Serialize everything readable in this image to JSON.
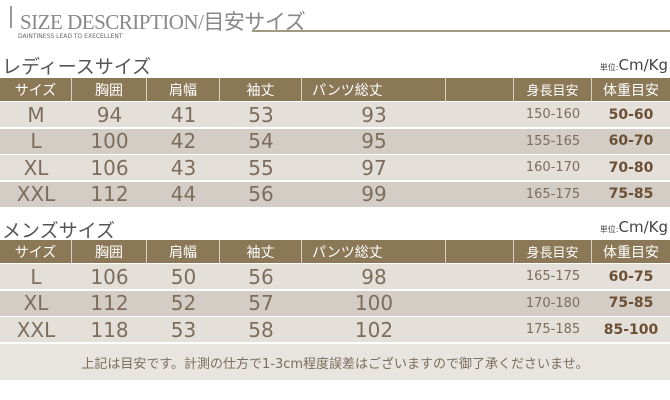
{
  "header": {
    "title": "SIZE DESCRIPTION/目安サイズ",
    "subtitle": "DAINTINESS LEAD TO EXECELLENT"
  },
  "unit_label": "単位:",
  "unit": "Cm/Kg",
  "columns": [
    "サイズ",
    "胸囲",
    "肩幅",
    "袖丈",
    "パンツ総丈",
    "",
    "身長目安",
    "体重目安"
  ],
  "ladies": {
    "title": "レディースサイズ",
    "rows": [
      [
        "M",
        "94",
        "41",
        "53",
        "93",
        "",
        "150-160",
        "50-60"
      ],
      [
        "L",
        "100",
        "42",
        "54",
        "95",
        "",
        "155-165",
        "60-70"
      ],
      [
        "XL",
        "106",
        "43",
        "55",
        "97",
        "",
        "160-170",
        "70-80"
      ],
      [
        "XXL",
        "112",
        "44",
        "56",
        "99",
        "",
        "165-175",
        "75-85"
      ]
    ]
  },
  "mens": {
    "title": "メンズサイズ",
    "rows": [
      [
        "L",
        "106",
        "50",
        "56",
        "98",
        "",
        "165-175",
        "60-75"
      ],
      [
        "XL",
        "112",
        "52",
        "57",
        "100",
        "",
        "170-180",
        "75-85"
      ],
      [
        "XXL",
        "118",
        "53",
        "58",
        "102",
        "",
        "175-185",
        "85-100"
      ]
    ]
  },
  "note": "上記は目安です。計測の仕方で1-3cm程度誤差はございますので御了承くださいませ。"
}
